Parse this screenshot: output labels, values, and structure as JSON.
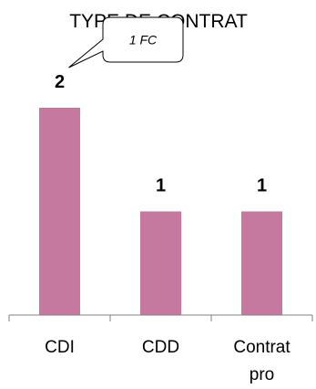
{
  "chart_data": {
    "type": "bar",
    "title": "TYPE DE CONTRAT",
    "categories": [
      "CDI",
      "CDD",
      "Contrat pro"
    ],
    "category_lines": [
      [
        "CDI"
      ],
      [
        "CDD"
      ],
      [
        "Contrat",
        "pro"
      ]
    ],
    "values": [
      2,
      1,
      1
    ],
    "data_labels": [
      "2",
      "1",
      "1"
    ],
    "xlabel": "",
    "ylabel": "",
    "ylim": [
      0,
      2
    ],
    "grid": false,
    "bar_color": "#C5799F",
    "annotation": {
      "text": "1 FC",
      "target_category": "CDI"
    }
  }
}
